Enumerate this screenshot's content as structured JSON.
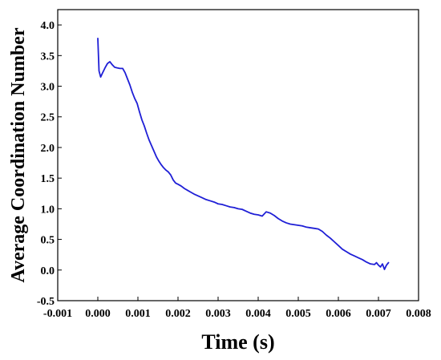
{
  "chart_data": {
    "type": "line",
    "title": "",
    "xlabel": "Time (s)",
    "ylabel": "Average Coordination Number",
    "xlim": [
      -0.001,
      0.008
    ],
    "ylim": [
      -0.5,
      4.25
    ],
    "x_ticks": [
      -0.001,
      0.0,
      0.001,
      0.002,
      0.003,
      0.004,
      0.005,
      0.006,
      0.007,
      0.008
    ],
    "x_tick_labels": [
      "-0.001",
      "0.000",
      "0.001",
      "0.002",
      "0.003",
      "0.004",
      "0.005",
      "0.006",
      "0.007",
      "0.008"
    ],
    "y_ticks": [
      -0.5,
      0.0,
      0.5,
      1.0,
      1.5,
      2.0,
      2.5,
      3.0,
      3.5,
      4.0
    ],
    "y_tick_labels": [
      "-0.5",
      "0.0",
      "0.5",
      "1.0",
      "1.5",
      "2.0",
      "2.5",
      "3.0",
      "3.5",
      "4.0"
    ],
    "grid": false,
    "legend": "none",
    "line_color": "#1f1fd6",
    "series": [
      {
        "x": [
          0.0,
          3e-05,
          7e-05,
          0.00012,
          0.00018,
          0.00024,
          0.0003,
          0.00036,
          0.00042,
          0.00048,
          0.00055,
          0.00062,
          0.00068,
          0.00074,
          0.0008,
          0.00086,
          0.00092,
          0.00098,
          0.00104,
          0.0011,
          0.00116,
          0.00122,
          0.00128,
          0.00134,
          0.0014,
          0.00146,
          0.00152,
          0.00158,
          0.00164,
          0.0017,
          0.00176,
          0.00182,
          0.00188,
          0.00194,
          0.002,
          0.00208,
          0.00216,
          0.00224,
          0.00232,
          0.0024,
          0.0025,
          0.0026,
          0.0027,
          0.0028,
          0.0029,
          0.003,
          0.0031,
          0.0032,
          0.0033,
          0.0034,
          0.0035,
          0.0036,
          0.0037,
          0.0038,
          0.0039,
          0.004,
          0.0041,
          0.0042,
          0.0043,
          0.0044,
          0.0045,
          0.0046,
          0.0047,
          0.0048,
          0.0049,
          0.005,
          0.0051,
          0.0052,
          0.0053,
          0.0054,
          0.0055,
          0.0056,
          0.0057,
          0.0058,
          0.0059,
          0.006,
          0.0061,
          0.0062,
          0.0063,
          0.0064,
          0.0065,
          0.0066,
          0.0067,
          0.0068,
          0.0069,
          0.00695,
          0.007,
          0.00705,
          0.0071,
          0.00715,
          0.0072,
          0.00725
        ],
        "y": [
          3.78,
          3.25,
          3.15,
          3.22,
          3.3,
          3.37,
          3.4,
          3.35,
          3.31,
          3.3,
          3.29,
          3.29,
          3.22,
          3.12,
          3.02,
          2.9,
          2.8,
          2.72,
          2.58,
          2.45,
          2.35,
          2.23,
          2.12,
          2.03,
          1.94,
          1.85,
          1.78,
          1.72,
          1.67,
          1.63,
          1.6,
          1.55,
          1.47,
          1.42,
          1.4,
          1.37,
          1.33,
          1.3,
          1.27,
          1.24,
          1.21,
          1.18,
          1.15,
          1.13,
          1.11,
          1.08,
          1.07,
          1.05,
          1.03,
          1.02,
          1.0,
          0.99,
          0.96,
          0.93,
          0.91,
          0.9,
          0.88,
          0.95,
          0.93,
          0.89,
          0.84,
          0.8,
          0.77,
          0.75,
          0.74,
          0.73,
          0.72,
          0.7,
          0.69,
          0.68,
          0.67,
          0.63,
          0.57,
          0.52,
          0.46,
          0.4,
          0.34,
          0.3,
          0.26,
          0.23,
          0.2,
          0.17,
          0.13,
          0.1,
          0.09,
          0.12,
          0.08,
          0.05,
          0.1,
          0.01,
          0.08,
          0.12
        ]
      }
    ]
  }
}
